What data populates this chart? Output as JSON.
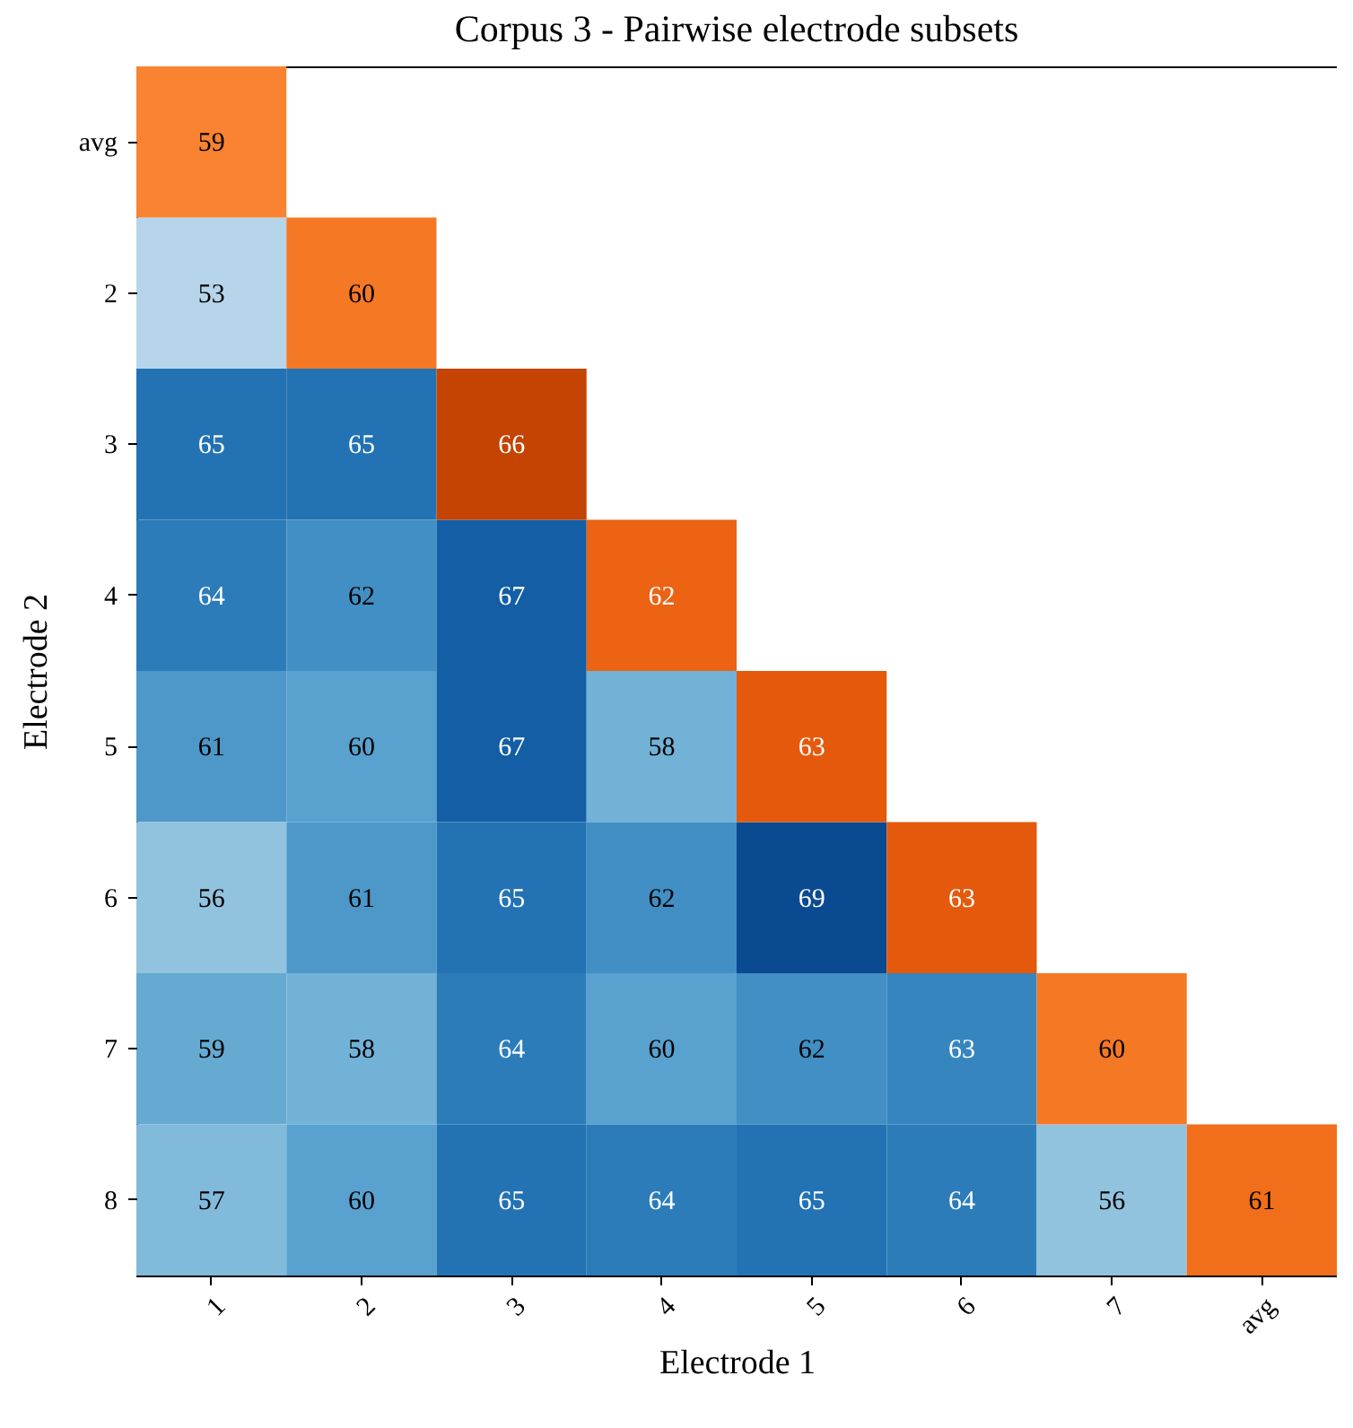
{
  "chart_data": {
    "type": "heatmap",
    "title": "Corpus 3 - Pairwise electrode subsets",
    "xlabel": "Electrode 1",
    "ylabel": "Electrode 2",
    "categories": [
      "1",
      "2",
      "3",
      "4",
      "5",
      "6",
      "7",
      "avg"
    ],
    "y_categories": [
      "avg",
      "2",
      "3",
      "4",
      "5",
      "6",
      "7",
      "8"
    ],
    "cells": [
      [
        59,
        null,
        null,
        null,
        null,
        null,
        null,
        null
      ],
      [
        53,
        60,
        null,
        null,
        null,
        null,
        null,
        null
      ],
      [
        65,
        65,
        66,
        null,
        null,
        null,
        null,
        null
      ],
      [
        64,
        62,
        67,
        62,
        null,
        null,
        null,
        null
      ],
      [
        61,
        60,
        67,
        58,
        63,
        null,
        null,
        null
      ],
      [
        56,
        61,
        65,
        62,
        69,
        63,
        null,
        null
      ],
      [
        59,
        58,
        64,
        60,
        62,
        63,
        60,
        null
      ],
      [
        57,
        60,
        65,
        64,
        65,
        64,
        56,
        61
      ]
    ],
    "data_labels": true
  }
}
